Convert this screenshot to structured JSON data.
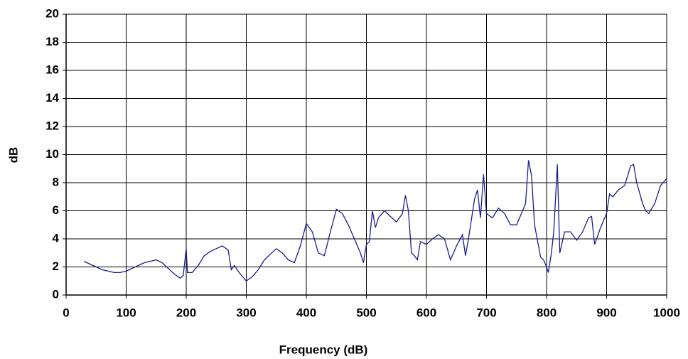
{
  "chart_data": {
    "type": "line",
    "x_label": "Frequency (dB)",
    "y_label": "dB",
    "xlim": [
      0,
      1000
    ],
    "xticks": [
      0,
      100,
      200,
      300,
      400,
      500,
      600,
      700,
      800,
      900,
      1000
    ],
    "ylim": [
      0,
      20
    ],
    "yticks": [
      0,
      2,
      4,
      6,
      8,
      10,
      12,
      14,
      16,
      18,
      20
    ],
    "grid": true,
    "series": [
      {
        "color": "#1c1c8c",
        "x": [
          30,
          40,
          50,
          60,
          70,
          80,
          90,
          100,
          110,
          120,
          130,
          140,
          150,
          160,
          170,
          180,
          190,
          195,
          200,
          202,
          210,
          220,
          230,
          240,
          250,
          260,
          270,
          275,
          280,
          290,
          300,
          310,
          320,
          330,
          340,
          350,
          360,
          370,
          380,
          390,
          400,
          410,
          420,
          430,
          440,
          450,
          460,
          470,
          480,
          490,
          495,
          500,
          505,
          510,
          515,
          520,
          530,
          540,
          550,
          560,
          565,
          570,
          575,
          580,
          585,
          590,
          600,
          610,
          620,
          630,
          640,
          650,
          660,
          665,
          670,
          680,
          685,
          690,
          695,
          700,
          710,
          720,
          730,
          740,
          750,
          760,
          765,
          770,
          775,
          780,
          790,
          795,
          800,
          803,
          808,
          812,
          818,
          822,
          830,
          840,
          850,
          860,
          870,
          875,
          880,
          885,
          890,
          900,
          905,
          910,
          920,
          930,
          940,
          945,
          950,
          960,
          965,
          970,
          980,
          990,
          1000
        ],
        "values": [
          2.4,
          2.2,
          2.0,
          1.8,
          1.7,
          1.6,
          1.6,
          1.7,
          1.9,
          2.1,
          2.3,
          2.4,
          2.5,
          2.3,
          1.9,
          1.5,
          1.2,
          1.4,
          3.3,
          1.6,
          1.6,
          2.1,
          2.8,
          3.1,
          3.3,
          3.5,
          3.2,
          1.8,
          2.1,
          1.5,
          1.0,
          1.3,
          1.8,
          2.5,
          2.9,
          3.3,
          3.0,
          2.5,
          2.3,
          3.5,
          5.1,
          4.5,
          3.0,
          2.8,
          4.5,
          6.1,
          5.8,
          5.0,
          4.0,
          3.0,
          2.3,
          3.6,
          3.8,
          6.0,
          4.8,
          5.5,
          6.0,
          5.6,
          5.2,
          5.8,
          7.1,
          6.0,
          3.0,
          2.8,
          2.5,
          3.8,
          3.6,
          4.0,
          4.3,
          4.0,
          2.5,
          3.5,
          4.3,
          2.8,
          4.0,
          6.8,
          7.5,
          5.5,
          8.6,
          5.8,
          5.5,
          6.2,
          5.8,
          5.0,
          5.0,
          6.0,
          6.5,
          9.6,
          8.5,
          5.0,
          2.7,
          2.5,
          2.0,
          1.6,
          3.0,
          4.5,
          9.3,
          3.0,
          4.5,
          4.5,
          3.9,
          4.5,
          5.5,
          5.6,
          3.6,
          4.2,
          4.8,
          5.8,
          7.2,
          7.0,
          7.5,
          7.8,
          9.2,
          9.3,
          8.0,
          6.5,
          6.0,
          5.8,
          6.5,
          7.8,
          8.3
        ]
      }
    ]
  }
}
